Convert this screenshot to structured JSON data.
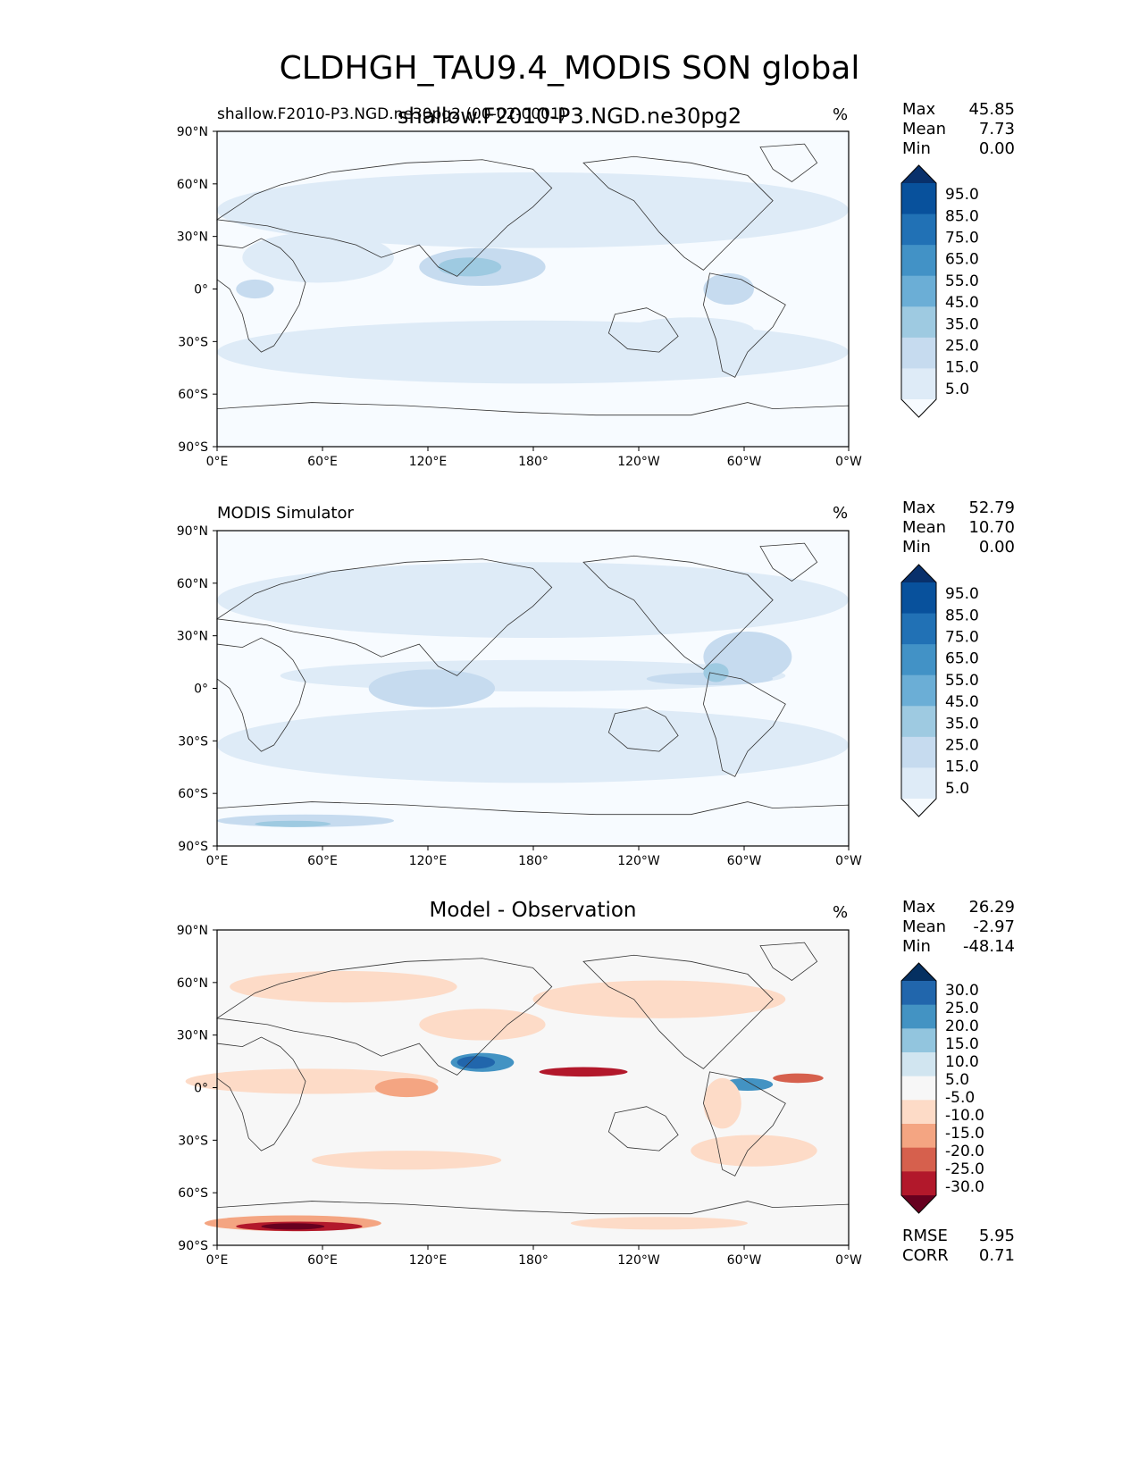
{
  "title": "CLDHGH_TAU9.4_MODIS SON global",
  "overlay_title": "shallow.F2010-P3.NGD.ne30pg2",
  "units": "%",
  "lat_ticks": [
    "90°N",
    "60°N",
    "30°N",
    "0°",
    "30°S",
    "60°S",
    "90°S"
  ],
  "lon_ticks": [
    "0°E",
    "60°E",
    "120°E",
    "180°",
    "120°W",
    "60°W",
    "0°W"
  ],
  "colors": {
    "blues": [
      "#f7fbff",
      "#deebf7",
      "#c6dbef",
      "#9ecae1",
      "#6baed6",
      "#4292c6",
      "#2171b5",
      "#08519c",
      "#08306b"
    ],
    "diff": [
      "#67001f",
      "#b2182b",
      "#d6604d",
      "#f4a582",
      "#fddbc7",
      "#f7f7f7",
      "#d1e5f0",
      "#92c5de",
      "#4393c3",
      "#2166ac",
      "#053061"
    ]
  },
  "panels": [
    {
      "title_left": "shallow.F2010-P3.NGD.ne30pg2 (00-02-0001)",
      "title_center": "",
      "units": "%",
      "stats": [
        [
          "Max",
          "45.85"
        ],
        [
          "Mean",
          "7.73"
        ],
        [
          "Min",
          "0.00"
        ]
      ],
      "colorbar_labels": [
        "95.0",
        "85.0",
        "75.0",
        "65.0",
        "55.0",
        "45.0",
        "35.0",
        "25.0",
        "15.0",
        "5.0"
      ],
      "extra_stats": []
    },
    {
      "title_left": "MODIS Simulator",
      "title_center": "",
      "units": "%",
      "stats": [
        [
          "Max",
          "52.79"
        ],
        [
          "Mean",
          "10.70"
        ],
        [
          "Min",
          "0.00"
        ]
      ],
      "colorbar_labels": [
        "95.0",
        "85.0",
        "75.0",
        "65.0",
        "55.0",
        "45.0",
        "35.0",
        "25.0",
        "15.0",
        "5.0"
      ],
      "extra_stats": []
    },
    {
      "title_left": "",
      "title_center": "Model - Observation",
      "units": "%",
      "stats": [
        [
          "Max",
          "26.29"
        ],
        [
          "Mean",
          "-2.97"
        ],
        [
          "Min",
          "-48.14"
        ]
      ],
      "colorbar_labels": [
        "30.0",
        "25.0",
        "20.0",
        "15.0",
        "10.0",
        "5.0",
        "-5.0",
        "-10.0",
        "-15.0",
        "-20.0",
        "-25.0",
        "-30.0"
      ],
      "extra_stats": [
        [
          "RMSE",
          "5.95"
        ],
        [
          "CORR",
          "0.71"
        ]
      ]
    }
  ],
  "chart_data": [
    {
      "type": "heatmap",
      "title": "shallow.F2010-P3.NGD.ne30pg2 (00-02-0001)",
      "units": "%",
      "xlabel": "",
      "ylabel": "",
      "x_ticks": [
        "0°E",
        "60°E",
        "120°E",
        "180°",
        "120°W",
        "60°W",
        "0°W"
      ],
      "y_ticks": [
        "90°N",
        "60°N",
        "30°N",
        "0°",
        "30°S",
        "60°S",
        "90°S"
      ],
      "levels": [
        5,
        15,
        25,
        35,
        45,
        55,
        65,
        75,
        85,
        95
      ],
      "max": 45.85,
      "mean": 7.73,
      "min": 0.0
    },
    {
      "type": "heatmap",
      "title": "MODIS Simulator",
      "units": "%",
      "xlabel": "",
      "ylabel": "",
      "x_ticks": [
        "0°E",
        "60°E",
        "120°E",
        "180°",
        "120°W",
        "60°W",
        "0°W"
      ],
      "y_ticks": [
        "90°N",
        "60°N",
        "30°N",
        "0°",
        "30°S",
        "60°S",
        "90°S"
      ],
      "levels": [
        5,
        15,
        25,
        35,
        45,
        55,
        65,
        75,
        85,
        95
      ],
      "max": 52.79,
      "mean": 10.7,
      "min": 0.0
    },
    {
      "type": "heatmap",
      "title": "Model - Observation",
      "units": "%",
      "xlabel": "",
      "ylabel": "",
      "x_ticks": [
        "0°E",
        "60°E",
        "120°E",
        "180°",
        "120°W",
        "60°W",
        "0°W"
      ],
      "y_ticks": [
        "90°N",
        "60°N",
        "30°N",
        "0°",
        "30°S",
        "60°S",
        "90°S"
      ],
      "levels": [
        -30,
        -25,
        -20,
        -15,
        -10,
        -5,
        5,
        10,
        15,
        20,
        25,
        30
      ],
      "max": 26.29,
      "mean": -2.97,
      "min": -48.14,
      "rmse": 5.95,
      "corr": 0.71
    }
  ]
}
